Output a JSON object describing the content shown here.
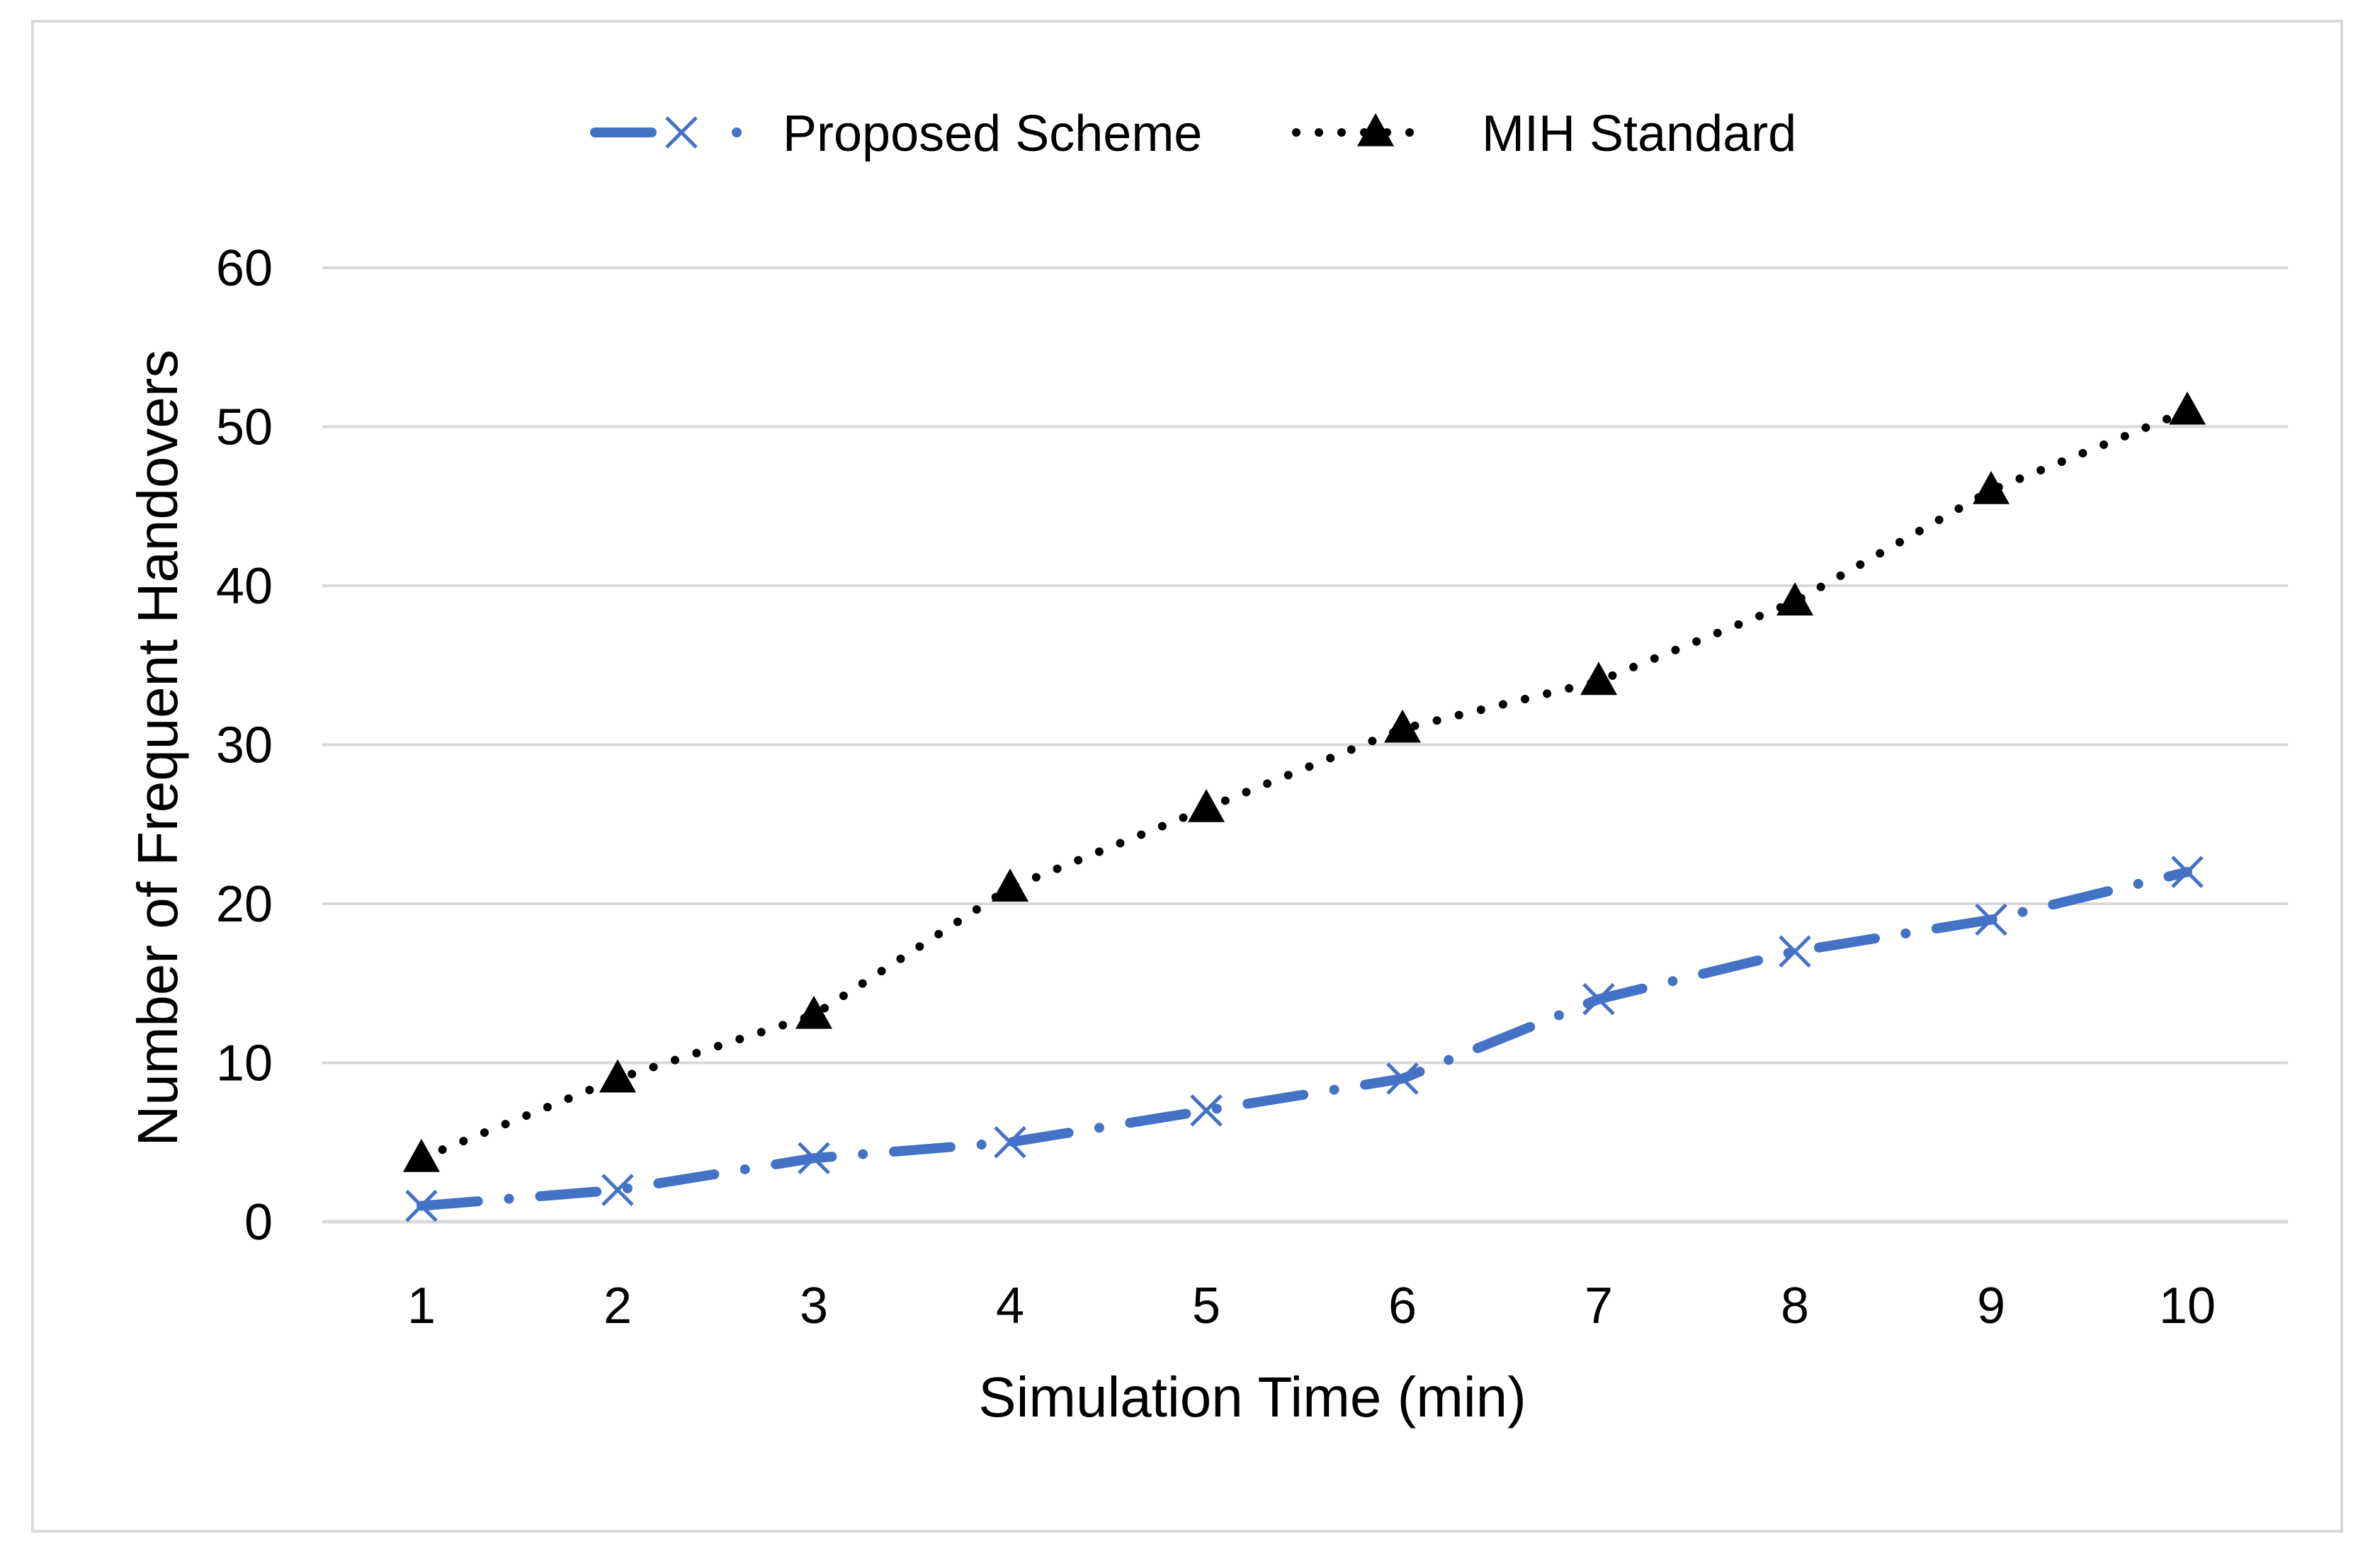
{
  "chart_data": {
    "type": "line",
    "title": "",
    "xlabel": "Simulation Time (min)",
    "ylabel": "Number of Frequent Handovers",
    "categories": [
      "1",
      "2",
      "3",
      "4",
      "5",
      "6",
      "7",
      "8",
      "9",
      "10"
    ],
    "ylim": [
      0,
      60
    ],
    "yticks": [
      "0",
      "10",
      "20",
      "30",
      "40",
      "50",
      "60"
    ],
    "grid": true,
    "legend_position": "top-center",
    "series": [
      {
        "name": "Proposed Scheme",
        "values": [
          1,
          2,
          4,
          5,
          7,
          9,
          14,
          17,
          19,
          22
        ],
        "color": "#4472c4",
        "line_style": "dash-dot",
        "marker": "x"
      },
      {
        "name": "MIH Standard",
        "values": [
          4,
          9,
          13,
          21,
          26,
          31,
          34,
          39,
          46,
          51
        ],
        "color": "#000000",
        "line_style": "dotted",
        "marker": "triangle"
      }
    ]
  }
}
